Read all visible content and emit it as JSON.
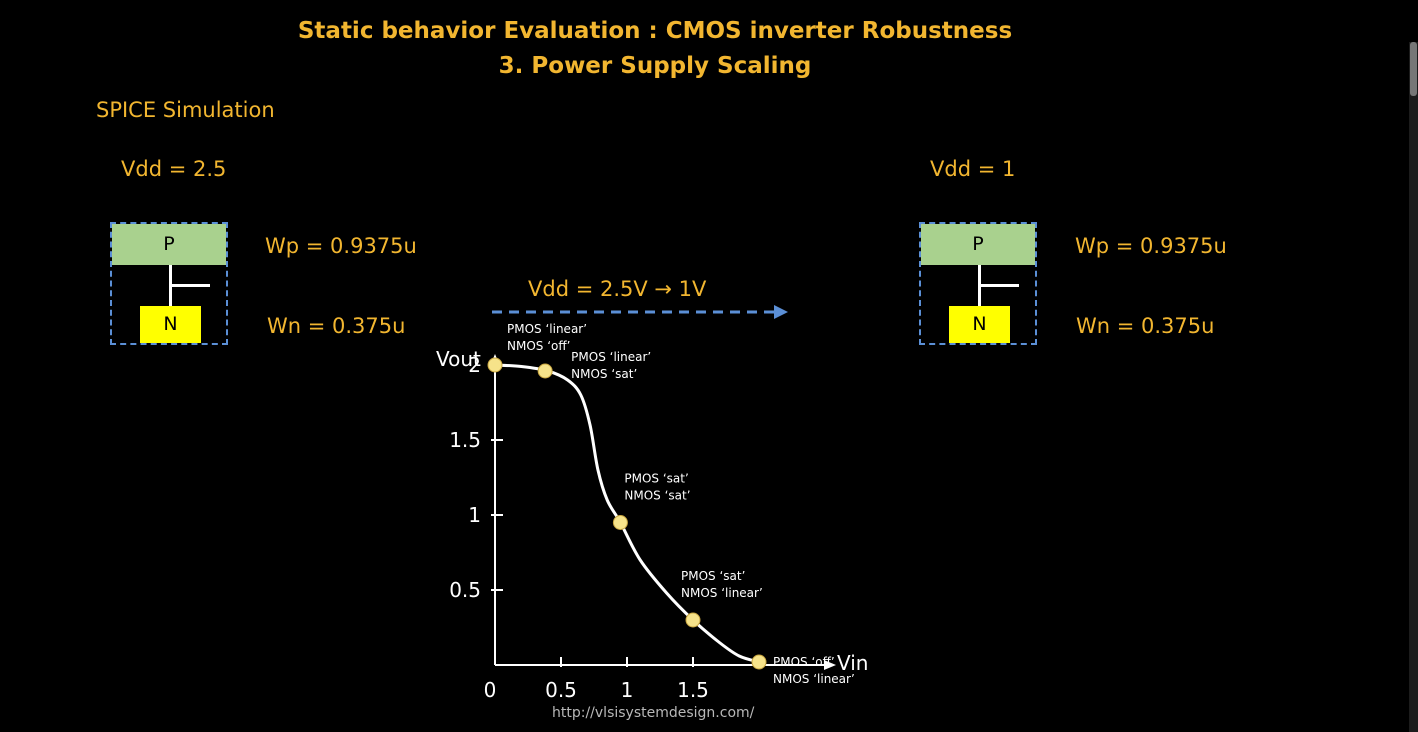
{
  "title_line1": "Static behavior Evaluation : CMOS inverter Robustness",
  "title_line2": "3. Power Supply Scaling",
  "section_label": "SPICE Simulation",
  "left": {
    "vdd_label": "Vdd = 2.5",
    "p_label": "P",
    "n_label": "N",
    "wp_label": "Wp = 0.9375u",
    "wn_label": "Wn = 0.375u"
  },
  "right": {
    "vdd_label": "Vdd = 1",
    "p_label": "P",
    "n_label": "N",
    "wp_label": "Wp = 0.9375u",
    "wn_label": "Wn = 0.375u"
  },
  "transition_label": "Vdd = 2.5V → 1V",
  "url": "http://vlsisystemdesign.com/",
  "colors": {
    "accent_yellow": "#f2b630",
    "p_fill": "#a9d18e",
    "n_fill": "#ffff00",
    "dash_blue": "#5b8fd6",
    "point_fill": "#f6e38a"
  },
  "chart_data": {
    "type": "line",
    "xlabel": "Vin",
    "ylabel": "Vout",
    "xlim": [
      0,
      2
    ],
    "ylim": [
      0,
      2
    ],
    "x_ticks": [
      0,
      0.5,
      1,
      1.5
    ],
    "x_tick_labels": [
      "0",
      "0.5",
      "1",
      "1.5"
    ],
    "y_ticks": [
      0.5,
      1,
      1.5,
      2
    ],
    "y_tick_labels": [
      "0.5",
      "1",
      "1.5",
      "2"
    ],
    "curve": [
      {
        "x": 0,
        "y": 2
      },
      {
        "x": 0.2,
        "y": 1.99
      },
      {
        "x": 0.4,
        "y": 1.96
      },
      {
        "x": 0.55,
        "y": 1.9
      },
      {
        "x": 0.65,
        "y": 1.8
      },
      {
        "x": 0.72,
        "y": 1.6
      },
      {
        "x": 0.78,
        "y": 1.3
      },
      {
        "x": 0.85,
        "y": 1.1
      },
      {
        "x": 0.95,
        "y": 0.95
      },
      {
        "x": 1.1,
        "y": 0.7
      },
      {
        "x": 1.3,
        "y": 0.48
      },
      {
        "x": 1.5,
        "y": 0.3
      },
      {
        "x": 1.7,
        "y": 0.15
      },
      {
        "x": 1.85,
        "y": 0.06
      },
      {
        "x": 2,
        "y": 0.02
      }
    ],
    "points": [
      {
        "x": 0,
        "y": 2,
        "label1": "PMOS ‘linear’",
        "label2": "NMOS ‘off’"
      },
      {
        "x": 0.38,
        "y": 1.96,
        "label1": "PMOS ‘linear’",
        "label2": "NMOS ‘sat’"
      },
      {
        "x": 0.95,
        "y": 0.95,
        "label1": "PMOS ‘sat’",
        "label2": "NMOS ‘sat’"
      },
      {
        "x": 1.5,
        "y": 0.3,
        "label1": "PMOS ‘sat’",
        "label2": "NMOS ‘linear’"
      },
      {
        "x": 2,
        "y": 0.02,
        "label1": "PMOS ‘off’",
        "label2": "NMOS ‘linear’"
      }
    ]
  }
}
